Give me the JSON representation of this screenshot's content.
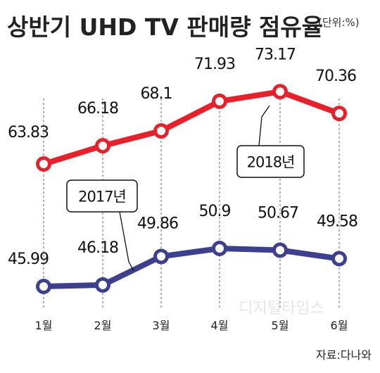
{
  "title": "상반기 UHD TV 판매량 점유율",
  "unit": "(단위:%)",
  "source": "자료:다나와",
  "watermark": "디지털타임스",
  "colors": {
    "series_2018": "#e8202a",
    "series_2017": "#3d3f8f",
    "gridline": "#8a8a8a"
  },
  "chart_data": {
    "type": "line",
    "title": "상반기 UHD TV 판매량 점유율",
    "unit": "(단위:%)",
    "categories": [
      "1월",
      "2월",
      "3월",
      "4월",
      "5월",
      "6월"
    ],
    "series": [
      {
        "name": "2018년",
        "values": [
          63.83,
          66.18,
          68.1,
          71.93,
          73.17,
          70.36
        ],
        "labels": [
          "63.83",
          "66.18",
          "68.1",
          "71.93",
          "73.17",
          "70.36"
        ],
        "color": "#e8202a"
      },
      {
        "name": "2017년",
        "values": [
          45.99,
          46.18,
          49.86,
          50.9,
          50.67,
          49.58
        ],
        "labels": [
          "45.99",
          "46.18",
          "49.86",
          "50.9",
          "50.67",
          "49.58"
        ],
        "color": "#3d3f8f"
      }
    ],
    "grid": "dashed vertical lines at each month",
    "legend": "callout labels"
  }
}
